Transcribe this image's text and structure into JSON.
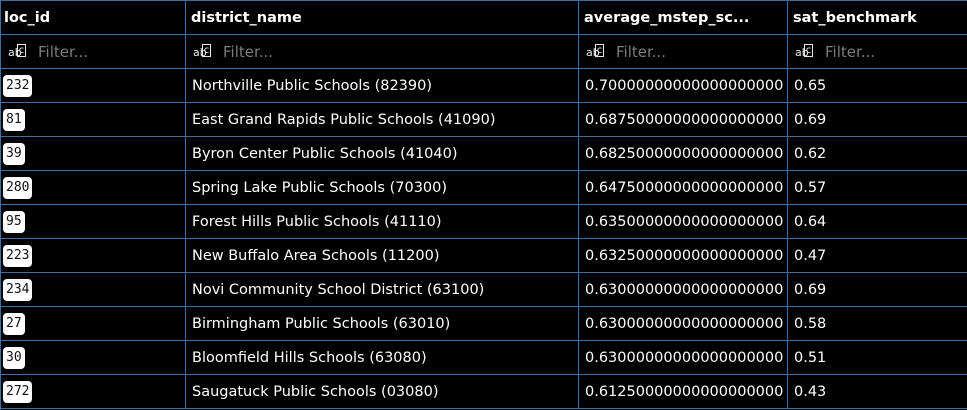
{
  "columns": [
    {
      "label": "loc_id"
    },
    {
      "label": "district_name"
    },
    {
      "label": "average_mstep_sc..."
    },
    {
      "label": "sat_benchmark"
    }
  ],
  "filter": {
    "placeholder": "Filter...",
    "icon": "text-filter-icon"
  },
  "rows": [
    {
      "loc_id": "232",
      "district_name": "Northville Public Schools (82390)",
      "average_mstep": "0.70000000000000000000",
      "sat_benchmark": "0.65"
    },
    {
      "loc_id": "81",
      "district_name": "East Grand Rapids Public Schools (41090)",
      "average_mstep": "0.68750000000000000000",
      "sat_benchmark": "0.69"
    },
    {
      "loc_id": "39",
      "district_name": "Byron Center Public Schools (41040)",
      "average_mstep": "0.68250000000000000000",
      "sat_benchmark": "0.62"
    },
    {
      "loc_id": "280",
      "district_name": "Spring Lake Public Schools (70300)",
      "average_mstep": "0.64750000000000000000",
      "sat_benchmark": "0.57"
    },
    {
      "loc_id": "95",
      "district_name": "Forest Hills Public Schools (41110)",
      "average_mstep": "0.63500000000000000000",
      "sat_benchmark": "0.64"
    },
    {
      "loc_id": "223",
      "district_name": "New Buffalo Area Schools (11200)",
      "average_mstep": "0.63250000000000000000",
      "sat_benchmark": "0.47"
    },
    {
      "loc_id": "234",
      "district_name": "Novi Community School District (63100)",
      "average_mstep": "0.63000000000000000000",
      "sat_benchmark": "0.69"
    },
    {
      "loc_id": "27",
      "district_name": "Birmingham Public Schools (63010)",
      "average_mstep": "0.63000000000000000000",
      "sat_benchmark": "0.58"
    },
    {
      "loc_id": "30",
      "district_name": "Bloomfield Hills Schools (63080)",
      "average_mstep": "0.63000000000000000000",
      "sat_benchmark": "0.51"
    },
    {
      "loc_id": "272",
      "district_name": "Saugatuck Public Schools (03080)",
      "average_mstep": "0.61250000000000000000",
      "sat_benchmark": "0.43"
    }
  ],
  "colors": {
    "border": "#3d6f9e",
    "background": "#000000",
    "text": "#ffffff",
    "badge": "#ffffff"
  }
}
